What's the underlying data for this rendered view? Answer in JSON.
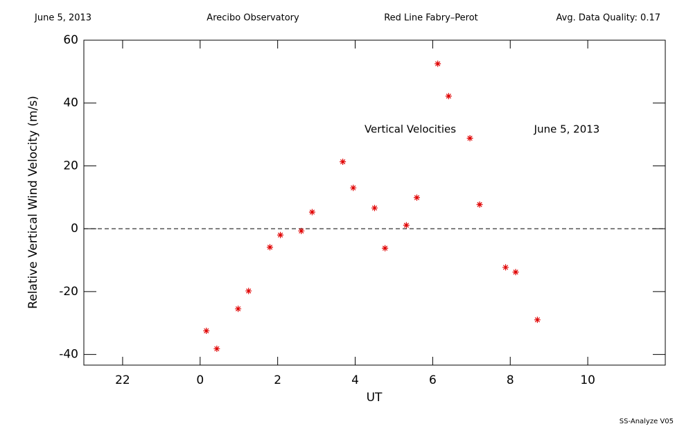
{
  "chart_data": {
    "type": "scatter",
    "header": [
      "June 5, 2013",
      "Arecibo Observatory",
      "Red Line Fabry–Perot",
      "Avg. Data Quality: 0.17"
    ],
    "xlabel": "UT",
    "ylabel": "Relative Vertical Wind Velocity (m/s)",
    "annotations": [
      "Vertical Velocities",
      "June 5, 2013"
    ],
    "footer": "SS-Analyze V05",
    "series": [
      {
        "name": "Vertical Velocities",
        "color": "#e00000",
        "x": [
          0.16,
          0.43,
          0.98,
          1.25,
          1.8,
          2.07,
          2.61,
          2.89,
          3.68,
          3.95,
          4.5,
          4.77,
          5.32,
          5.59,
          6.13,
          6.41,
          6.96,
          7.21,
          7.88,
          8.14,
          8.7
        ],
        "values": [
          -32.5,
          -38.2,
          -25.5,
          -19.8,
          -5.9,
          -2.0,
          -0.7,
          5.3,
          21.3,
          13.0,
          6.6,
          -6.2,
          1.1,
          9.9,
          52.5,
          42.2,
          28.8,
          7.7,
          -12.3,
          -13.8,
          -29.0
        ]
      }
    ],
    "xlim": [
      -3,
      12
    ],
    "xticks": [
      {
        "value": -2,
        "label": "22"
      },
      0,
      2,
      4,
      6,
      8,
      10
    ],
    "ylim": [
      -43.4,
      60
    ],
    "yticks": [
      -40,
      -20,
      0,
      20,
      40,
      60
    ],
    "reference_line": 0
  }
}
